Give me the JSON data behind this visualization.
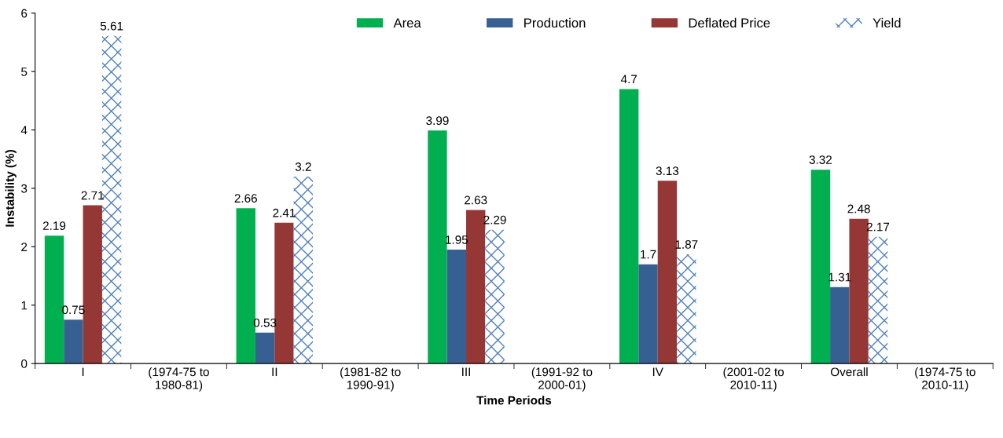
{
  "chart_data": {
    "type": "bar",
    "xlabel": "Time Periods",
    "ylabel": "Instability (%)",
    "categories": [
      "I",
      "(1974-75 to\n1980-81)",
      "II",
      "(1981-82 to\n1990-91)",
      "III",
      "(1991-92 to\n2000-01)",
      "IV",
      "(2001-02 to\n2010-11)",
      "Overall",
      "(1974-75 to\n2010-11)"
    ],
    "series": [
      {
        "name": "Area",
        "color": "#00b050",
        "values": [
          2.19,
          null,
          2.66,
          null,
          3.99,
          null,
          4.7,
          null,
          3.32,
          null
        ]
      },
      {
        "name": "Production",
        "color": "#366092",
        "values": [
          0.75,
          null,
          0.53,
          null,
          1.95,
          null,
          1.7,
          null,
          1.31,
          null
        ]
      },
      {
        "name": "Deflated Price",
        "color": "#953735",
        "values": [
          2.71,
          null,
          2.41,
          null,
          2.63,
          null,
          3.13,
          null,
          2.48,
          null
        ]
      },
      {
        "name": "Yield",
        "color": "#4f81bd",
        "values": [
          5.61,
          null,
          3.2,
          null,
          2.29,
          null,
          1.87,
          null,
          2.17,
          null
        ]
      }
    ],
    "ylim": [
      0,
      6
    ],
    "yticks": [
      0,
      1,
      2,
      3,
      4,
      5,
      6
    ],
    "data_labels": true,
    "legend": "top",
    "grid": false
  }
}
